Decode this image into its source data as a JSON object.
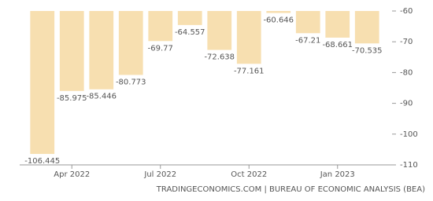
{
  "chart_data": {
    "type": "bar",
    "categories": [
      null,
      "Apr 2022",
      null,
      null,
      "Jul 2022",
      null,
      null,
      "Oct 2022",
      null,
      null,
      "Jan 2023",
      null
    ],
    "values": [
      -106.445,
      -85.975,
      -85.446,
      -80.773,
      -69.77,
      -64.557,
      -72.638,
      -77.161,
      -60.646,
      -67.21,
      -68.661,
      -70.535
    ],
    "color": "#f7dfb0",
    "ylim": [
      -110,
      -60
    ],
    "yticks": [
      -60,
      -70,
      -80,
      -90,
      -100,
      -110
    ],
    "grid": false,
    "source": "TRADINGECONOMICS.COM | BUREAU OF ECONOMIC ANALYSIS (BEA)"
  }
}
